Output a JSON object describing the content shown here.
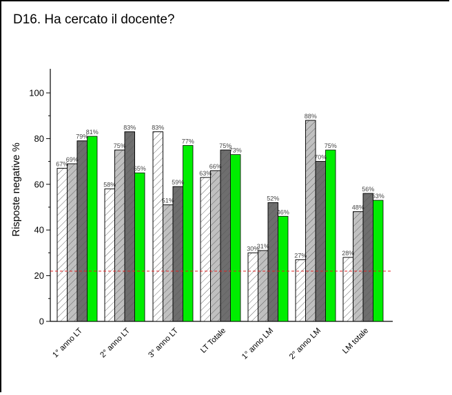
{
  "cell": {
    "title": "D16. Ha cercato il docente?"
  },
  "chart_data": {
    "type": "bar",
    "title": "D16. Ha cercato il docente?",
    "xlabel": "",
    "ylabel": "Risposte negative %",
    "ylim": [
      0,
      110
    ],
    "yticks": [
      0,
      20,
      40,
      60,
      80,
      100
    ],
    "categories": [
      "1° anno LT",
      "2° anno LT",
      "3° anno LT",
      "LT Totale",
      "1° anno LM",
      "2° anno LM",
      "LM totale"
    ],
    "series": [
      {
        "fill": "#ffffff",
        "hatch": true,
        "values": [
          67,
          58,
          83,
          63,
          30,
          27,
          28
        ]
      },
      {
        "fill": "#c0c0c0",
        "hatch": true,
        "values": [
          69,
          75,
          51,
          66,
          31,
          88,
          48
        ]
      },
      {
        "fill": "#6e6e6e",
        "hatch": true,
        "values": [
          79,
          83,
          59,
          75,
          52,
          70,
          56
        ]
      },
      {
        "fill": "#00ee00",
        "hatch": false,
        "values": [
          81,
          65,
          77,
          73,
          46,
          75,
          53
        ]
      }
    ],
    "data_labels": [
      [
        "67%",
        "69%",
        "79%",
        "81%"
      ],
      [
        "58%",
        "75%",
        "83%",
        "65%"
      ],
      [
        "83%",
        "51%",
        "59%",
        "77%"
      ],
      [
        "63%",
        "66%",
        "75%",
        "73%"
      ],
      [
        "30%",
        "31%",
        "52%",
        "46%"
      ],
      [
        "27%",
        "88%",
        "70%",
        "75%"
      ],
      [
        "28%",
        "48%",
        "56%",
        "53%"
      ]
    ],
    "reference_line": {
      "value": 22,
      "color": "#e02020",
      "style": "dashed"
    },
    "grid": false,
    "legend": "none"
  }
}
